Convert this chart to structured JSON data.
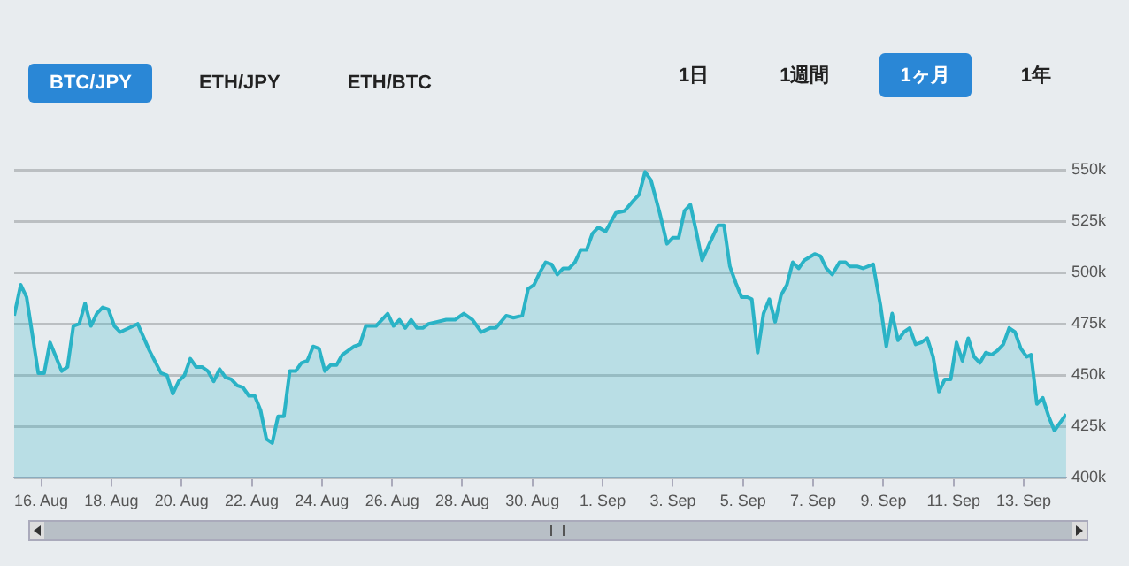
{
  "chart_data": {
    "type": "area",
    "annotations": [
      "BTC/JPY",
      "ETH/JPY",
      "ETH/BTC",
      "1日",
      "1週間",
      "1ヶ月",
      "1年"
    ],
    "x": [
      "--08-15T05:30",
      "--08-15T10:00",
      "--08-15T14:00",
      "--08-15T22:00",
      "--08-16T02:00",
      "--08-16T06:00",
      "--08-16T14:00",
      "--08-16T18:00",
      "--08-16T22:00",
      "--08-17T02:00",
      "--08-17T06:00",
      "--08-17T10:00",
      "--08-17T14:00",
      "--08-17T18:00",
      "--08-17T22:00",
      "--08-18T02:00",
      "--08-18T06:00",
      "--08-18T18:00",
      "--08-19T02:00",
      "--08-19T10:00",
      "--08-19T14:00",
      "--08-19T18:00",
      "--08-19T22:00",
      "--08-20T02:00",
      "--08-20T06:00",
      "--08-20T10:00",
      "--08-20T14:00",
      "--08-20T18:00",
      "--08-20T22:00",
      "--08-21T02:00",
      "--08-21T06:00",
      "--08-21T10:00",
      "--08-21T14:00",
      "--08-21T18:00",
      "--08-21T22:00",
      "--08-22T02:00",
      "--08-22T06:00",
      "--08-22T10:00",
      "--08-22T14:00",
      "--08-22T18:00",
      "--08-22T22:00",
      "--08-23T02:00",
      "--08-23T06:00",
      "--08-23T10:00",
      "--08-23T14:00",
      "--08-23T18:00",
      "--08-23T22:00",
      "--08-24T02:00",
      "--08-24T06:00",
      "--08-24T10:00",
      "--08-24T14:00",
      "--08-24T18:00",
      "--08-24T22:00",
      "--08-25T02:00",
      "--08-25T06:00",
      "--08-25T13:00",
      "--08-25T21:00",
      "--08-26T01:00",
      "--08-26T05:00",
      "--08-26T09:00",
      "--08-26T13:00",
      "--08-26T17:00",
      "--08-26T21:00",
      "--08-27T01:00",
      "--08-27T07:00",
      "--08-27T13:00",
      "--08-27T19:00",
      "--08-28T01:00",
      "--08-28T07:00",
      "--08-28T13:00",
      "--08-28T19:00",
      "--08-28T23:00",
      "--08-29T06:00",
      "--08-29T11:00",
      "--08-29T17:00",
      "--08-29T21:00",
      "--08-30T01:00",
      "--08-30T05:00",
      "--08-30T09:00",
      "--08-30T13:00",
      "--08-30T17:00",
      "--08-30T21:00",
      "--08-31T01:00",
      "--08-31T05:00",
      "--08-31T09:00",
      "--08-31T13:00",
      "--08-31T17:00",
      "--08-31T21:00",
      "--09-01T02:00",
      "--09-01T09:00",
      "--09-01T15:00",
      "--09-01T21:00",
      "--09-02T01:00",
      "--09-02T05:00",
      "--09-02T09:00",
      "--09-02T15:00",
      "--09-02T20:00",
      "--09-03T00:00",
      "--09-03T04:00",
      "--09-03T08:00",
      "--09-03T12:00",
      "--09-03T16:00",
      "--09-03T20:00",
      "--09-04T01:00",
      "--09-04T07:00",
      "--09-04T11:00",
      "--09-04T15:00",
      "--09-04T19:00",
      "--09-04T23:00",
      "--09-05T03:00",
      "--09-05T06:00",
      "--09-05T10:00",
      "--09-05T14:00",
      "--09-05T18:00",
      "--09-05T22:00",
      "--09-06T02:00",
      "--09-06T06:00",
      "--09-06T10:00",
      "--09-06T14:00",
      "--09-06T18:00",
      "--09-07T01:00",
      "--09-07T05:00",
      "--09-07T09:00",
      "--09-07T13:00",
      "--09-07T18:00",
      "--09-07T22:00",
      "--09-08T01:00",
      "--09-08T06:00",
      "--09-08T10:00",
      "--09-08T17:00",
      "--09-08T22:00",
      "--09-09T02:00",
      "--09-09T06:00",
      "--09-09T10:00",
      "--09-09T14:00",
      "--09-09T18:00",
      "--09-09T22:00",
      "--09-10T02:00",
      "--09-10T06:00",
      "--09-10T10:00",
      "--09-10T14:00",
      "--09-10T18:00",
      "--09-10T22:00",
      "--09-11T02:00",
      "--09-11T06:00",
      "--09-11T10:00",
      "--09-11T14:00",
      "--09-11T18:00",
      "--09-11T22:00",
      "--09-12T02:00",
      "--09-12T06:00",
      "--09-12T10:00",
      "--09-12T14:00",
      "--09-12T18:00",
      "--09-12T22:00",
      "--09-13T02:00",
      "--09-13T05:00",
      "--09-13T09:00",
      "--09-13T13:00",
      "--09-13T17:00",
      "--09-13T21:00",
      "--09-14T01:00",
      "--09-14T05:00"
    ],
    "series": [
      {
        "color": "#2ab3c6",
        "values": [
          479,
          494,
          488,
          451,
          451,
          466,
          452,
          454,
          474,
          475,
          485,
          474,
          480,
          483,
          482,
          474,
          471,
          475,
          462,
          451,
          450,
          441,
          447,
          450,
          458,
          454,
          454,
          452,
          447,
          453,
          449,
          448,
          445,
          444,
          440,
          440,
          433,
          419,
          417,
          430,
          430,
          452,
          452,
          456,
          457,
          464,
          463,
          452,
          455,
          455,
          460,
          462,
          464,
          465,
          474,
          474,
          480,
          474,
          477,
          473,
          477,
          473,
          473,
          475,
          476,
          477,
          477,
          480,
          477,
          471,
          473,
          473,
          479,
          478,
          479,
          492,
          494,
          500,
          505,
          504,
          499,
          502,
          502,
          505,
          511,
          511,
          519,
          522,
          520,
          529,
          530,
          535,
          538,
          549,
          545,
          529,
          514,
          517,
          517,
          530,
          533,
          520,
          506,
          514,
          523,
          523,
          503,
          495,
          488,
          488,
          487,
          461,
          480,
          487,
          476,
          489,
          494,
          505,
          502,
          506,
          509,
          508,
          502,
          499,
          505,
          505,
          503,
          503,
          502,
          504,
          484,
          464,
          480,
          467,
          471,
          473,
          465,
          466,
          468,
          459,
          442,
          448,
          448,
          466,
          457,
          468,
          459,
          456,
          461,
          460,
          462,
          465,
          473,
          471,
          463,
          459,
          460,
          436,
          439,
          430,
          423,
          427,
          431
        ]
      }
    ],
    "xlim": [
      "--08-15T05:30",
      "--09-14T05:00"
    ],
    "xticks": [
      {
        "value": "--08-16",
        "label": "16. Aug"
      },
      {
        "value": "--08-18",
        "label": "18. Aug"
      },
      {
        "value": "--08-20",
        "label": "20. Aug"
      },
      {
        "value": "--08-22",
        "label": "22. Aug"
      },
      {
        "value": "--08-24",
        "label": "24. Aug"
      },
      {
        "value": "--08-26",
        "label": "26. Aug"
      },
      {
        "value": "--08-28",
        "label": "28. Aug"
      },
      {
        "value": "--08-30",
        "label": "30. Aug"
      },
      {
        "value": "--09-01",
        "label": "1. Sep"
      },
      {
        "value": "--09-03",
        "label": "3. Sep"
      },
      {
        "value": "--09-05",
        "label": "5. Sep"
      },
      {
        "value": "--09-07",
        "label": "7. Sep"
      },
      {
        "value": "--09-09",
        "label": "9. Sep"
      },
      {
        "value": "--09-11",
        "label": "11. Sep"
      },
      {
        "value": "--09-13",
        "label": "13. Sep"
      }
    ],
    "ylim": [
      400,
      550
    ],
    "yticks": [
      {
        "value": 400,
        "label": "400k"
      },
      {
        "value": 425,
        "label": "425k"
      },
      {
        "value": 450,
        "label": "450k"
      },
      {
        "value": 475,
        "label": "475k"
      },
      {
        "value": 500,
        "label": "500k"
      },
      {
        "value": 525,
        "label": "525k"
      },
      {
        "value": 550,
        "label": "550k"
      }
    ],
    "grid": "y",
    "legend": false,
    "marker": "none",
    "line_style": "solid"
  }
}
